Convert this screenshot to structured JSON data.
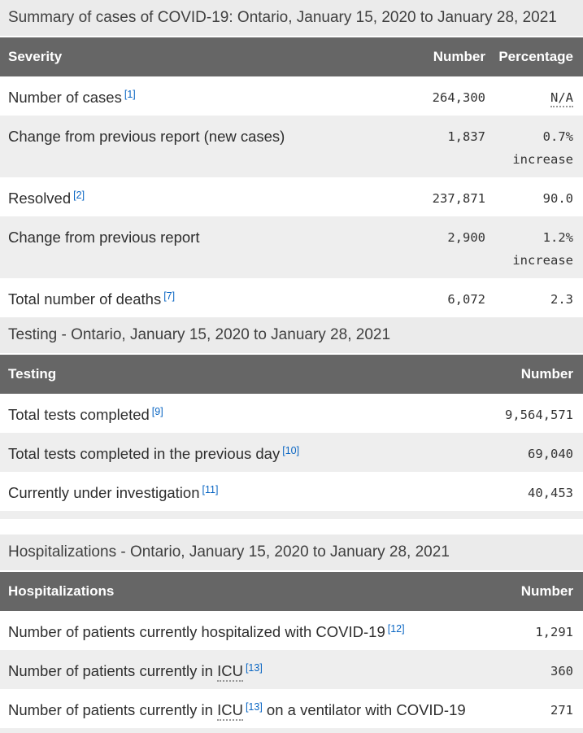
{
  "colors": {
    "header_bg": "#666666",
    "caption_bg": "#ebebeb",
    "stripe_bg": "#eeeeee",
    "link_blue": "#0a66c3",
    "text": "#2e2e2e"
  },
  "summary": {
    "caption": "Summary of cases of COVID-19: Ontario, January 15, 2020 to January 28, 2021",
    "headers": {
      "severity": "Severity",
      "number": "Number",
      "percentage": "Percentage"
    },
    "rows": [
      {
        "label": "Number of cases",
        "footnote": "[1]",
        "number": "264,300",
        "percentage": "N/A"
      },
      {
        "label": "Change from previous report (new cases)",
        "footnote": "",
        "number": "1,837",
        "percentage": "0.7% increase"
      },
      {
        "label": "Resolved",
        "footnote": "[2]",
        "number": "237,871",
        "percentage": "90.0"
      },
      {
        "label": "Change from previous report",
        "footnote": "",
        "number": "2,900",
        "percentage": "1.2% increase"
      },
      {
        "label": "Total number of deaths",
        "footnote": "[7]",
        "number": "6,072",
        "percentage": "2.3"
      }
    ]
  },
  "testing": {
    "caption": "Testing - Ontario, January 15, 2020 to January 28, 2021",
    "headers": {
      "label": "Testing",
      "number": "Number"
    },
    "rows": [
      {
        "label": "Total tests completed",
        "footnote": "[9]",
        "number": "9,564,571"
      },
      {
        "label": "Total tests completed in the previous day",
        "footnote": "[10]",
        "number": "69,040"
      },
      {
        "label": "Currently under investigation",
        "footnote": "[11]",
        "number": "40,453"
      }
    ]
  },
  "hospitalizations": {
    "caption": "Hospitalizations - Ontario, January 15, 2020 to January 28, 2021",
    "headers": {
      "label": "Hospitalizations",
      "number": "Number"
    },
    "rows": [
      {
        "label": "Number of patients currently hospitalized with COVID-19",
        "footnote": "[12]",
        "number": "1,291"
      },
      {
        "label_pre": "Number of patients currently in ",
        "abbr": "ICU",
        "footnote": "[13]",
        "label_post": "",
        "number": "360"
      },
      {
        "label_pre": "Number of patients currently in ",
        "abbr": "ICU",
        "footnote": "[13]",
        "label_post": " on a ventilator with COVID-19",
        "number": "271"
      }
    ]
  }
}
